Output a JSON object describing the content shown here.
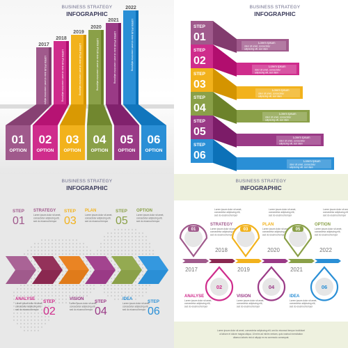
{
  "header": {
    "subtitle": "BUSINESS STRATEGY",
    "title": "INFOGRAPHIC"
  },
  "colors": {
    "purple": "#a05a8c",
    "magenta": "#cf2c8c",
    "yellow": "#f2b21c",
    "olive": "#8aa048",
    "plum": "#9a3a86",
    "blue": "#2a8fd6",
    "orange": "#e07b1a",
    "wine": "#8a2850"
  },
  "panel1": {
    "years": [
      "2017",
      "2018",
      "2019",
      "2020",
      "2021",
      "2022"
    ],
    "numbers": [
      "01",
      "02",
      "03",
      "04",
      "05",
      "06"
    ],
    "option_label": "OPTION",
    "bar_text": "LOREM IPSUM dolor sit amet consectetur adipiscing"
  },
  "panel2": {
    "step_label": "STEP",
    "numbers": [
      "01",
      "02",
      "03",
      "04",
      "05",
      "06"
    ],
    "lorem_title": "Lorem Ipsum",
    "lorem_body": [
      "dolor sit amet, consectetur",
      "adipiscing elit, sed diam"
    ]
  },
  "panel3": {
    "step_label": "STEP",
    "top": [
      {
        "num": "01",
        "title": "STRATEGY"
      },
      {
        "num": "03",
        "title": "PLAN"
      },
      {
        "num": "05",
        "title": "OPTION"
      }
    ],
    "bottom": [
      {
        "num": "02",
        "title": "ANALYSE"
      },
      {
        "num": "04",
        "title": "VISION"
      },
      {
        "num": "06",
        "title": "IDEA"
      }
    ],
    "lorem": [
      "Lorem ipsum dolor sit amet,",
      "consectetur adipiscing elit,",
      "sed do eiusmod tempor"
    ]
  },
  "panel4": {
    "top_years": [
      "2018",
      "2020",
      "2022"
    ],
    "bottom_years": [
      "2017",
      "2019",
      "2021"
    ],
    "top": [
      {
        "num": "01",
        "title": "STRATEGY"
      },
      {
        "num": "03",
        "title": "PLAN"
      },
      {
        "num": "05",
        "title": "OPTION"
      }
    ],
    "bottom": [
      {
        "num": "02",
        "title": "ANALYSE"
      },
      {
        "num": "04",
        "title": "VISION"
      },
      {
        "num": "06",
        "title": "IDEA"
      }
    ],
    "lorem": [
      "Lorem ipsum dolor sit amet,",
      "consectetur adipiscing elit,",
      "sed do eiusmod tempor"
    ],
    "footer_lorem": [
      "Lorem ipsum dolor sit amet, consectetur adipiscing elit, sed do eiusmod tempor incididunt",
      "ut labore et dolore magna aliqua. Ut enim ad minim veniam, quis nostrud exercitation",
      "ullamco laboris nisi ut aliquip ex ea commodo consequat."
    ]
  }
}
